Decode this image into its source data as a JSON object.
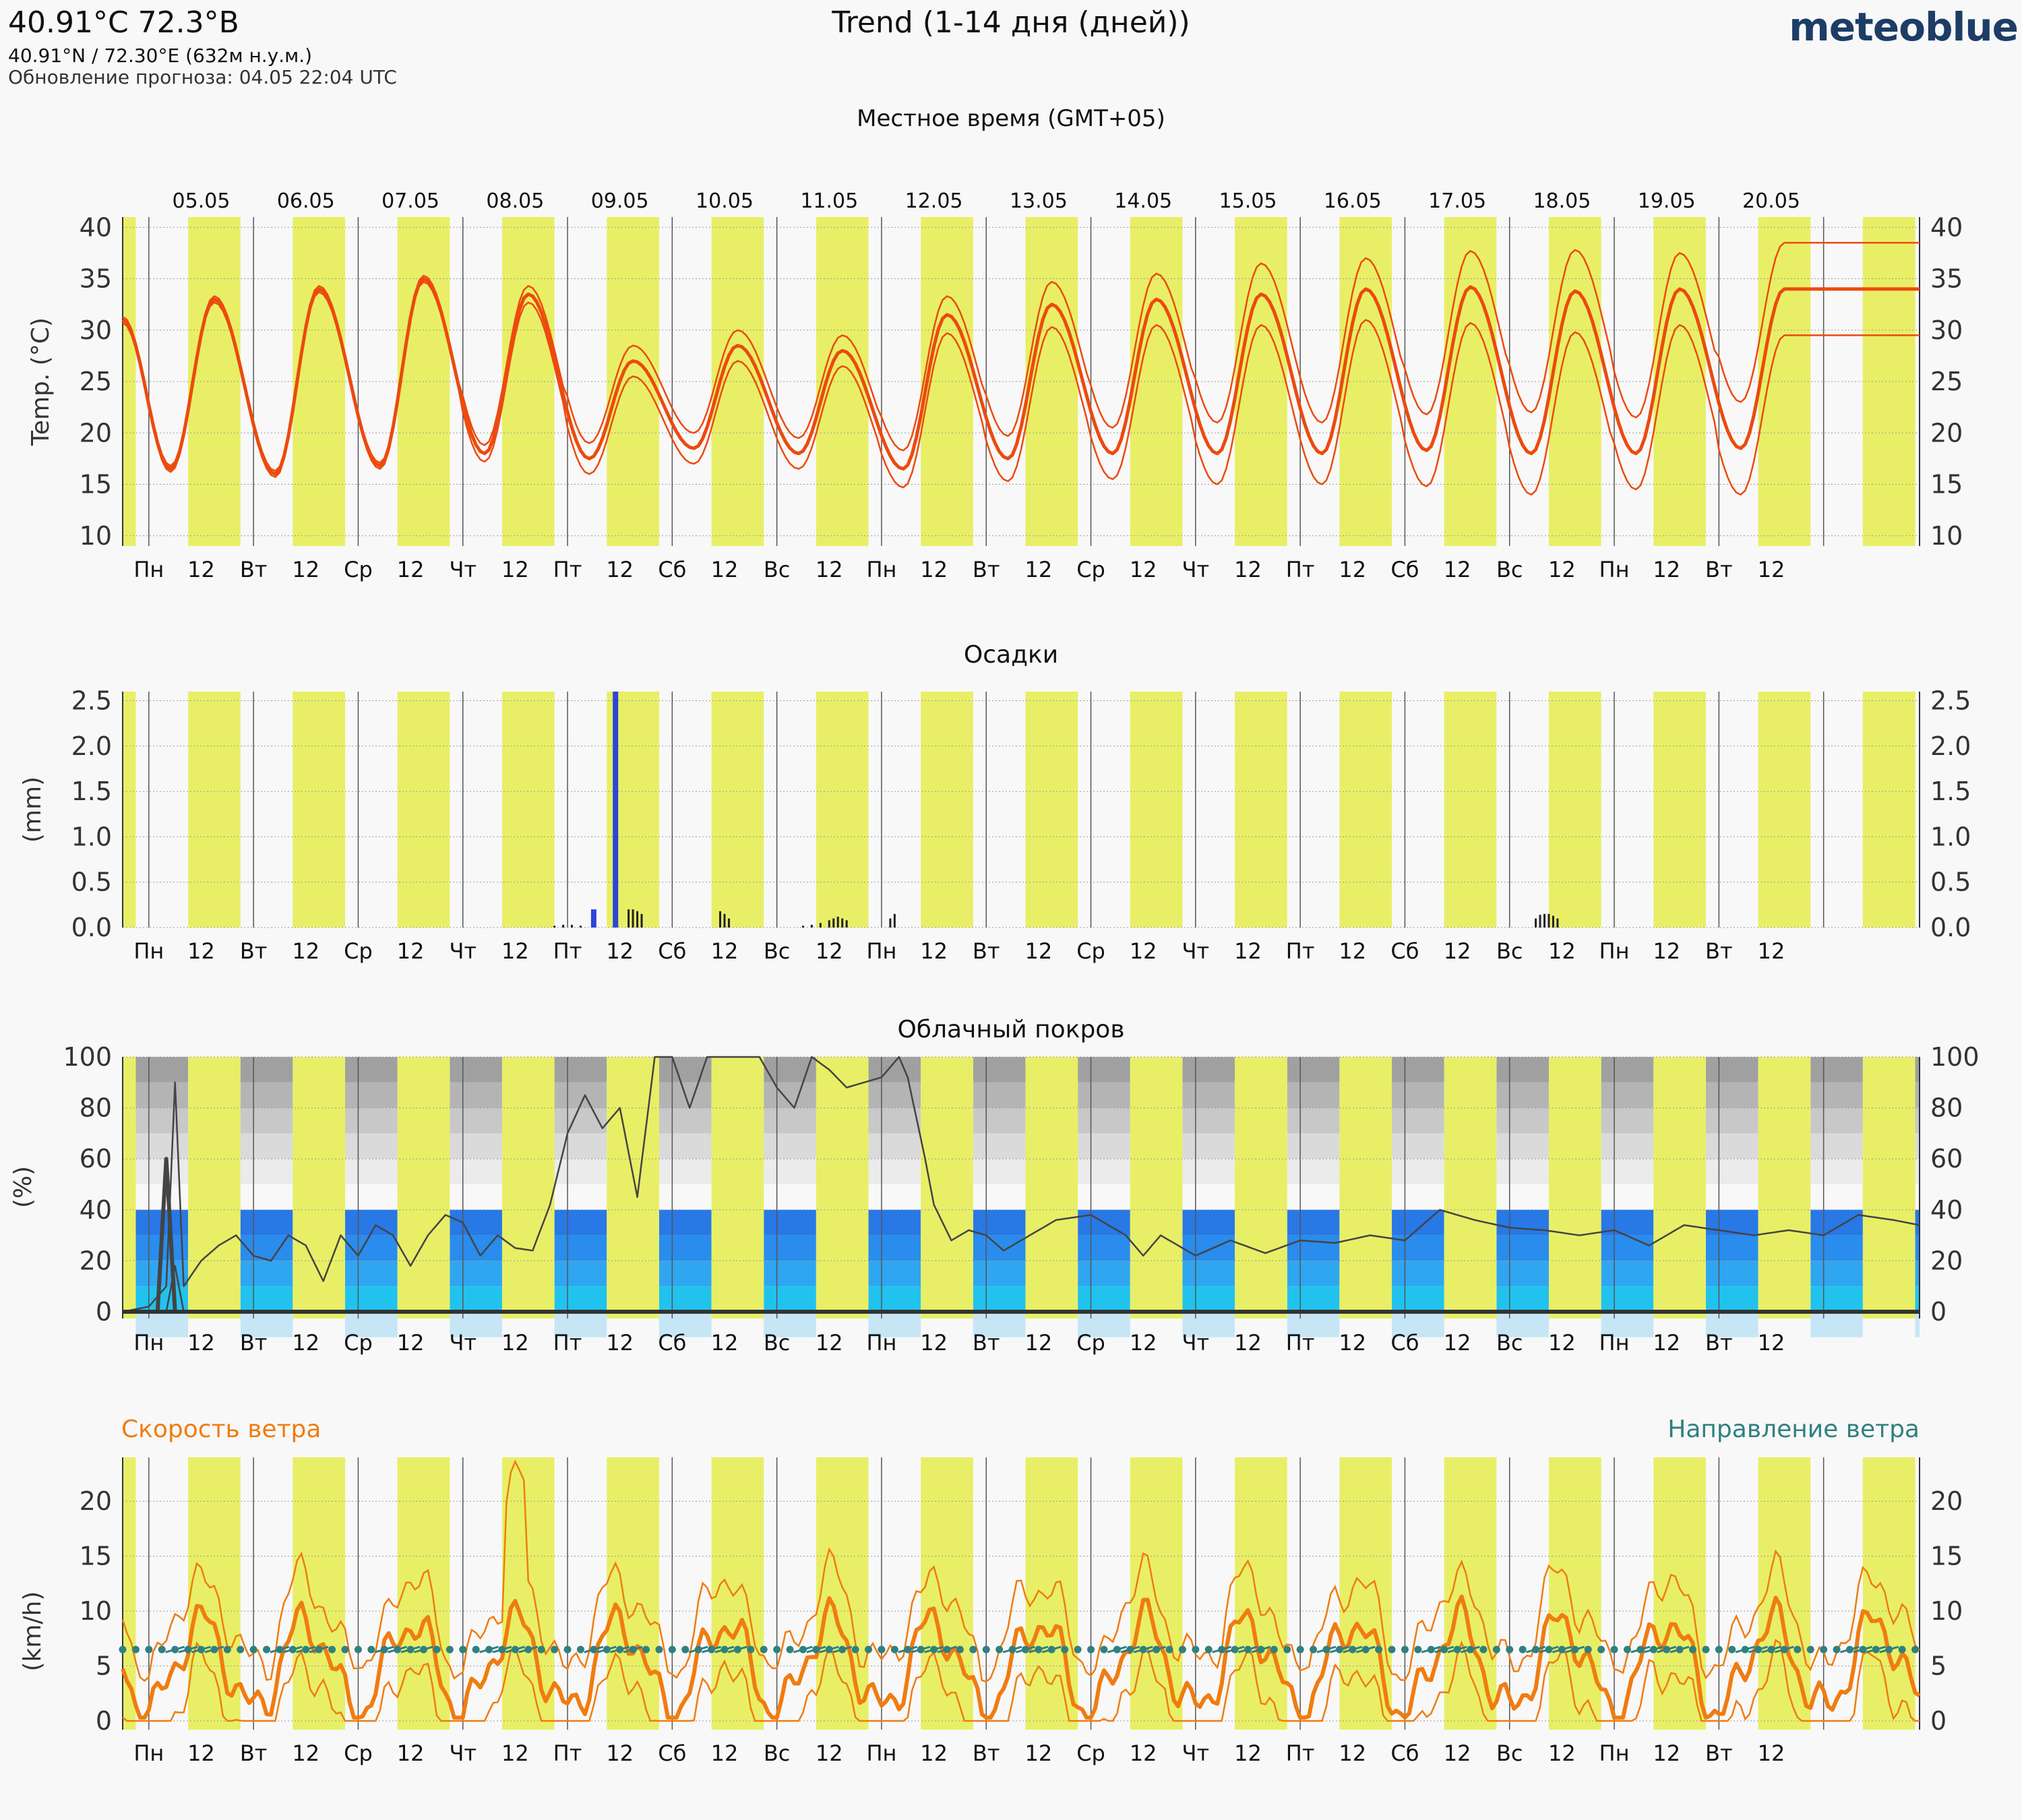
{
  "header": {
    "location": "40.91°C 72.3°В",
    "coords": "40.91°N / 72.30°E (632м н.у.м.)",
    "updated": "Обновление прогноза: 04.05 22:04 UTC",
    "title": "Trend (1-14 дня (дней))",
    "logo": "meteoblue",
    "local_time_label": "Местное время (GMT+05)"
  },
  "dates": [
    "05.05",
    "06.05",
    "07.05",
    "08.05",
    "09.05",
    "10.05",
    "11.05",
    "12.05",
    "13.05",
    "14.05",
    "15.05",
    "16.05",
    "17.05",
    "18.05",
    "19.05",
    "20.05"
  ],
  "day_labels": [
    "Пн",
    "Вт",
    "Ср",
    "Чт",
    "Пт",
    "Сб",
    "Вс",
    "Пн",
    "Вт",
    "Ср",
    "Чт",
    "Пт",
    "Сб",
    "Вс",
    "Пн",
    "Вт"
  ],
  "noon_label": "12",
  "colors": {
    "day_band": "#e8ef66",
    "temp_line": "#ec4a0e",
    "precip_bar": "#2e45d6",
    "cloud_line": "#444444",
    "wind_speed": "#f07c10",
    "wind_dir": "#2f8080"
  },
  "panels": {
    "temp": {
      "ylabel": "Temp. (°C)"
    },
    "precip": {
      "title": "Осадки",
      "ylabel": "(mm)"
    },
    "cloud": {
      "title": "Облачный покров",
      "ylabel": "(%)"
    },
    "wind": {
      "speed_title": "Скорость ветра",
      "dir_title": "Направление ветра",
      "ylabel": "(km/h)"
    }
  },
  "chart_data": [
    {
      "type": "line",
      "title": "",
      "ylabel": "Temp. (°C)",
      "ylim": [
        9,
        41
      ],
      "yticks": [
        10,
        15,
        20,
        25,
        30,
        35,
        40
      ],
      "x_unit": "hours after 05.05 00:00 local time",
      "days_max": [
        33,
        34,
        35,
        33.5,
        27,
        28.5,
        28,
        31.5,
        32.5,
        33,
        33.5,
        34,
        34.2,
        33.8,
        34,
        34
      ],
      "days_min": [
        16.5,
        16,
        16.8,
        18,
        17.5,
        18.5,
        18,
        16.5,
        17.5,
        18,
        18,
        18,
        18.3,
        18,
        18,
        18.5
      ],
      "spread": [
        0.3,
        0.3,
        0.3,
        0.8,
        1.5,
        1.5,
        1.5,
        1.8,
        2.2,
        2.5,
        3,
        3,
        3.5,
        4,
        3.5,
        4.5
      ],
      "series": [
        {
          "role": "median"
        },
        {
          "role": "upper"
        },
        {
          "role": "lower"
        }
      ]
    },
    {
      "type": "bar",
      "title": "Осадки",
      "ylabel": "(mm)",
      "ylim": [
        0,
        2.6
      ],
      "yticks": [
        0.0,
        0.5,
        1.0,
        1.5,
        2.0,
        2.5
      ],
      "x_unit": "hours after 05.05 00:00 local time",
      "bars": [
        {
          "x": 102,
          "v": 0.2
        },
        {
          "x": 107,
          "v": 2.6
        }
      ],
      "ensemble_ticks": [
        {
          "x": 93,
          "v": 0.02
        },
        {
          "x": 95,
          "v": 0.03
        },
        {
          "x": 97,
          "v": 0.03
        },
        {
          "x": 99,
          "v": 0.02
        },
        {
          "x": 110,
          "v": 0.2
        },
        {
          "x": 111,
          "v": 0.2
        },
        {
          "x": 112,
          "v": 0.18
        },
        {
          "x": 113,
          "v": 0.15
        },
        {
          "x": 131,
          "v": 0.18
        },
        {
          "x": 132,
          "v": 0.15
        },
        {
          "x": 133,
          "v": 0.1
        },
        {
          "x": 150,
          "v": 0.02
        },
        {
          "x": 152,
          "v": 0.03
        },
        {
          "x": 154,
          "v": 0.05
        },
        {
          "x": 156,
          "v": 0.08
        },
        {
          "x": 157,
          "v": 0.1
        },
        {
          "x": 158,
          "v": 0.12
        },
        {
          "x": 159,
          "v": 0.1
        },
        {
          "x": 160,
          "v": 0.08
        },
        {
          "x": 170,
          "v": 0.1
        },
        {
          "x": 171,
          "v": 0.15
        },
        {
          "x": 318,
          "v": 0.1
        },
        {
          "x": 319,
          "v": 0.14
        },
        {
          "x": 320,
          "v": 0.15
        },
        {
          "x": 321,
          "v": 0.15
        },
        {
          "x": 322,
          "v": 0.13
        },
        {
          "x": 323,
          "v": 0.1
        }
      ]
    },
    {
      "type": "line",
      "title": "Облачный покров",
      "ylabel": "(%)",
      "ylim": [
        0,
        100
      ],
      "yticks": [
        0,
        20,
        40,
        60,
        80,
        100
      ],
      "x_unit": "hours after 05.05 00:00 local time",
      "series": [
        {
          "role": "upper",
          "points": [
            [
              -6,
              0
            ],
            [
              0,
              2
            ],
            [
              4,
              10
            ],
            [
              6,
              90
            ],
            [
              8,
              10
            ],
            [
              12,
              20
            ],
            [
              16,
              26
            ],
            [
              20,
              30
            ],
            [
              24,
              22
            ],
            [
              28,
              20
            ],
            [
              32,
              30
            ],
            [
              36,
              26
            ],
            [
              40,
              12
            ],
            [
              44,
              30
            ],
            [
              48,
              22
            ],
            [
              52,
              34
            ],
            [
              56,
              30
            ],
            [
              60,
              18
            ],
            [
              64,
              30
            ],
            [
              68,
              38
            ],
            [
              72,
              35
            ],
            [
              76,
              22
            ],
            [
              80,
              30
            ],
            [
              84,
              25
            ],
            [
              88,
              24
            ],
            [
              92,
              42
            ],
            [
              96,
              70
            ],
            [
              100,
              85
            ],
            [
              104,
              72
            ],
            [
              108,
              80
            ],
            [
              112,
              45
            ],
            [
              116,
              100
            ],
            [
              120,
              100
            ],
            [
              124,
              80
            ],
            [
              128,
              100
            ],
            [
              132,
              100
            ],
            [
              136,
              100
            ],
            [
              140,
              100
            ],
            [
              144,
              88
            ],
            [
              148,
              80
            ],
            [
              152,
              100
            ],
            [
              156,
              95
            ],
            [
              160,
              88
            ],
            [
              164,
              90
            ],
            [
              168,
              92
            ],
            [
              172,
              100
            ],
            [
              174,
              92
            ],
            [
              178,
              60
            ],
            [
              180,
              42
            ],
            [
              184,
              28
            ],
            [
              188,
              32
            ],
            [
              192,
              30
            ],
            [
              196,
              24
            ],
            [
              200,
              28
            ],
            [
              208,
              36
            ],
            [
              216,
              38
            ],
            [
              224,
              30
            ],
            [
              228,
              22
            ],
            [
              232,
              30
            ],
            [
              240,
              22
            ],
            [
              248,
              28
            ],
            [
              256,
              23
            ],
            [
              264,
              28
            ],
            [
              272,
              27
            ],
            [
              280,
              30
            ],
            [
              288,
              28
            ],
            [
              296,
              40
            ],
            [
              304,
              36
            ],
            [
              312,
              33
            ],
            [
              320,
              32
            ],
            [
              328,
              30
            ],
            [
              336,
              32
            ],
            [
              344,
              26
            ],
            [
              352,
              34
            ],
            [
              360,
              32
            ],
            [
              368,
              30
            ],
            [
              376,
              32
            ],
            [
              384,
              30
            ],
            [
              392,
              38
            ],
            [
              400,
              36
            ],
            [
              406,
              34
            ]
          ]
        },
        {
          "role": "median",
          "points": [
            [
              -6,
              0
            ],
            [
              0,
              0
            ],
            [
              2,
              0
            ],
            [
              4,
              60
            ],
            [
              6,
              0
            ],
            [
              320,
              0
            ],
            [
              406,
              0
            ]
          ]
        },
        {
          "role": "lower",
          "points": [
            [
              -6,
              0
            ],
            [
              4,
              0
            ],
            [
              6,
              18
            ],
            [
              8,
              0
            ],
            [
              406,
              0
            ]
          ]
        }
      ]
    },
    {
      "type": "line",
      "title": "",
      "ylabel": "(km/h)",
      "ylim": [
        -0.8,
        24
      ],
      "yticks": [
        0,
        5,
        10,
        15,
        20
      ],
      "x_unit": "hours after 05.05 00:00 local time",
      "series": [
        {
          "name": "Скорость ветра",
          "role": "median"
        },
        {
          "role": "upper"
        },
        {
          "role": "lower"
        },
        {
          "name": "Направление ветра",
          "role": "direction",
          "value": 6.5
        }
      ]
    }
  ]
}
